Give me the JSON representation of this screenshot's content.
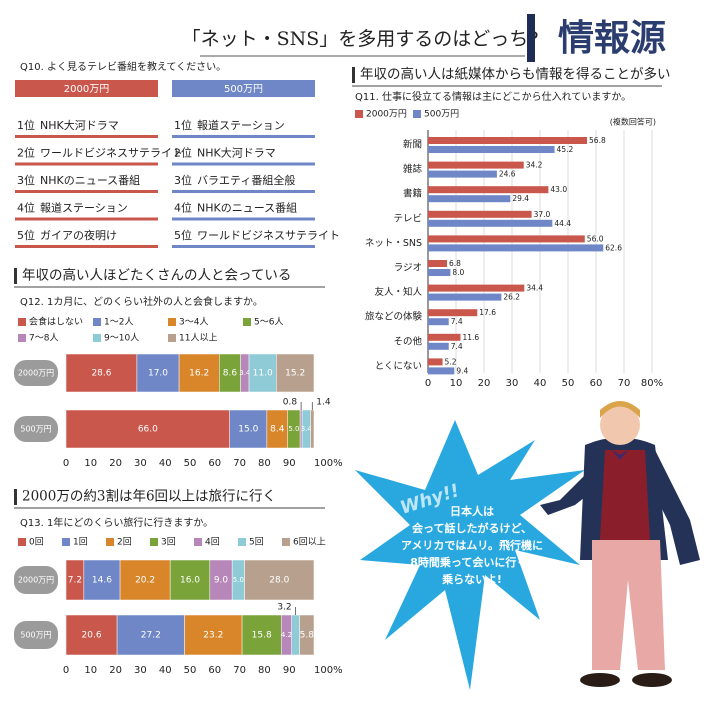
{
  "header": {
    "title": "「ネット・SNS」を多用するのはどっち?",
    "badge": "情報源"
  },
  "q10": {
    "question": "Q10. よく見るテレビ番組を教えてください。",
    "columns": [
      {
        "name": "2000万円",
        "color": "#c9574c",
        "items": [
          {
            "rank": "1位",
            "name": "NHK大河ドラマ"
          },
          {
            "rank": "2位",
            "name": "ワールドビジネスサテライト"
          },
          {
            "rank": "3位",
            "name": "NHKのニュース番組"
          },
          {
            "rank": "4位",
            "name": "報道ステーション"
          },
          {
            "rank": "5位",
            "name": "ガイアの夜明け"
          }
        ]
      },
      {
        "name": "500万円",
        "color": "#6f87c6",
        "items": [
          {
            "rank": "1位",
            "name": "報道ステーション"
          },
          {
            "rank": "2位",
            "name": "NHK大河ドラマ"
          },
          {
            "rank": "3位",
            "name": "バラエティ番組全般"
          },
          {
            "rank": "4位",
            "name": "NHKのニュース番組"
          },
          {
            "rank": "5位",
            "name": "ワールドビジネスサテライト"
          }
        ]
      }
    ]
  },
  "chart_data": [
    {
      "type": "bar",
      "title": "年収の高い人は紙媒体からも情報を得ることが多い",
      "subtitle": "Q11. 仕事に役立てる情報は主にどこから仕入れていますか。",
      "note": "(複数回答可)",
      "categories": [
        "新聞",
        "雑誌",
        "書籍",
        "テレビ",
        "ネット・SNS",
        "ラジオ",
        "友人・知人",
        "旅などの体験",
        "その他",
        "とくにない"
      ],
      "series": [
        {
          "name": "2000万円",
          "color": "#c9574c",
          "values": [
            56.8,
            34.2,
            43.0,
            37.0,
            56.0,
            6.8,
            34.4,
            17.6,
            11.6,
            5.2
          ],
          "value_labels": [
            "56.8",
            "34.2",
            "43.0",
            "37.0",
            "56.0",
            "6.8",
            "34.4",
            "17.6",
            "11.6",
            "5.2"
          ]
        },
        {
          "name": "500万円",
          "color": "#6f87c6",
          "values": [
            45.2,
            24.6,
            29.4,
            44.4,
            62.6,
            8.0,
            26.2,
            7.4,
            7.4,
            9.4
          ],
          "value_labels": [
            "45.2",
            "24.6",
            "29.4",
            "44.4",
            "62.6",
            "8.0",
            "26.2",
            "7.4",
            "7.4",
            "9.4"
          ]
        }
      ],
      "xlim": [
        0,
        80
      ],
      "xticks": [
        0,
        10,
        20,
        30,
        40,
        50,
        60,
        70,
        {
          "value": 80,
          "label": "80%"
        }
      ],
      "grid": true
    },
    {
      "type": "stacked_bar",
      "title": "年収の高い人ほどたくさんの人と会っている",
      "subtitle": "Q12. 1カ月に、どのくらい社外の人と会食しますか。",
      "categories": [
        "2000万円",
        "500万円"
      ],
      "series": [
        {
          "name": "会食はしない",
          "color": "#c9574c",
          "values": [
            28.6,
            66.0
          ],
          "value_labels": [
            "28.6",
            "66.0"
          ]
        },
        {
          "name": "1～2人",
          "color": "#6f87c6",
          "values": [
            17.0,
            15.0
          ],
          "value_labels": [
            "17.0",
            "15.0"
          ]
        },
        {
          "name": "3～4人",
          "color": "#d9862a",
          "values": [
            16.2,
            8.4
          ],
          "value_labels": [
            "16.2",
            "8.4"
          ]
        },
        {
          "name": "5～6人",
          "color": "#7aa33a",
          "values": [
            8.6,
            5.0
          ],
          "value_labels": [
            "8.6",
            "5.0"
          ]
        },
        {
          "name": "7～8人",
          "color": "#b687b8",
          "values": [
            3.4,
            0.8
          ],
          "value_labels": [
            "3.4",
            "0.8"
          ]
        },
        {
          "name": "9～10人",
          "color": "#8ecbd6",
          "values": [
            11.0,
            3.4
          ],
          "value_labels": [
            "11.0",
            "3.4"
          ]
        },
        {
          "name": "11人以上",
          "color": "#b8a08e",
          "values": [
            15.2,
            1.4
          ],
          "value_labels": [
            "15.2",
            "1.4"
          ]
        }
      ],
      "xlim": [
        0,
        100
      ],
      "xticks": [
        0,
        10,
        20,
        30,
        40,
        50,
        60,
        70,
        80,
        90,
        {
          "value": 100,
          "label": "100%"
        }
      ],
      "grid": false
    },
    {
      "type": "stacked_bar",
      "title": "2000万の約3割は年6回以上は旅行に行く",
      "subtitle": "Q13. 1年にどのくらい旅行に行きますか。",
      "categories": [
        "2000万円",
        "500万円"
      ],
      "series": [
        {
          "name": "0回",
          "color": "#c9574c",
          "values": [
            7.2,
            20.6
          ],
          "value_labels": [
            "7.2",
            "20.6"
          ]
        },
        {
          "name": "1回",
          "color": "#6f87c6",
          "values": [
            14.6,
            27.2
          ],
          "value_labels": [
            "14.6",
            "27.2"
          ]
        },
        {
          "name": "2回",
          "color": "#d9862a",
          "values": [
            20.2,
            23.2
          ],
          "value_labels": [
            "20.2",
            "23.2"
          ]
        },
        {
          "name": "3回",
          "color": "#7aa33a",
          "values": [
            16.0,
            15.8
          ],
          "value_labels": [
            "16.0",
            "15.8"
          ]
        },
        {
          "name": "4回",
          "color": "#b687b8",
          "values": [
            9.0,
            4.2
          ],
          "value_labels": [
            "9.0",
            "4.2"
          ]
        },
        {
          "name": "5回",
          "color": "#8ecbd6",
          "values": [
            5.0,
            3.2
          ],
          "value_labels": [
            "5.0",
            "3.2"
          ]
        },
        {
          "name": "6回以上",
          "color": "#b8a08e",
          "values": [
            28.0,
            5.8
          ],
          "value_labels": [
            "28.0",
            "5.8"
          ]
        }
      ],
      "xlim": [
        0,
        100
      ],
      "xticks": [
        0,
        10,
        20,
        30,
        40,
        50,
        60,
        70,
        80,
        90,
        {
          "value": 100,
          "label": "100%"
        }
      ],
      "grid": false
    }
  ],
  "bubble": {
    "exclaim": "Why!!",
    "lines": [
      "日本人は",
      "会って話したがるけど、",
      "アメリカではムリ。飛行機に",
      "8時間乗って会いに行く?",
      "乗らないよ!"
    ]
  }
}
